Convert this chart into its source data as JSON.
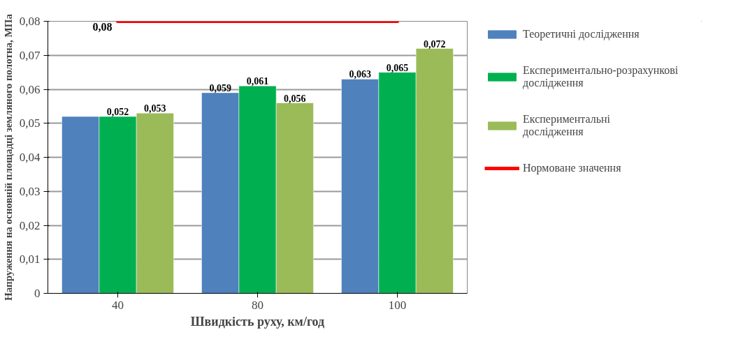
{
  "chart_data": {
    "type": "bar",
    "xlabel": "Швидкість руху, км/год",
    "ylabel": "Напруження на основній площадці земляного полотна, МПа",
    "categories": [
      "40",
      "80",
      "100"
    ],
    "series": [
      {
        "name": "Теоретичні дослідження",
        "color": "#4f81bd",
        "values": [
          0.052,
          0.059,
          0.063
        ],
        "value_labels": [
          null,
          "0,059",
          "0,063"
        ]
      },
      {
        "name": "Експериментально-розрахункові дослідження",
        "color": "#00b050",
        "values": [
          0.052,
          0.061,
          0.065
        ],
        "value_labels": [
          "0,052",
          "0,061",
          "0,065"
        ]
      },
      {
        "name": "Експериментальні дослідження",
        "color": "#9bbb59",
        "values": [
          0.053,
          0.056,
          0.072
        ],
        "value_labels": [
          "0,053",
          "0,056",
          "0,072"
        ]
      },
      {
        "name": "Нормоване значення",
        "type": "line",
        "color": "#ff0000",
        "values": [
          0.08,
          0.08,
          0.08
        ],
        "value_labels": [
          "0,08",
          null,
          null
        ]
      }
    ],
    "ylim": [
      0,
      0.08
    ],
    "yticks": [
      {
        "value": 0,
        "label": "0"
      },
      {
        "value": 0.01,
        "label": "0,01"
      },
      {
        "value": 0.02,
        "label": "0,02"
      },
      {
        "value": 0.03,
        "label": "0,03"
      },
      {
        "value": 0.04,
        "label": "0,04"
      },
      {
        "value": 0.05,
        "label": "0,05"
      },
      {
        "value": 0.06,
        "label": "0,06"
      },
      {
        "value": 0.07,
        "label": "0,07"
      },
      {
        "value": 0.08,
        "label": "0,08"
      }
    ],
    "grid": "y",
    "legend": "right"
  }
}
